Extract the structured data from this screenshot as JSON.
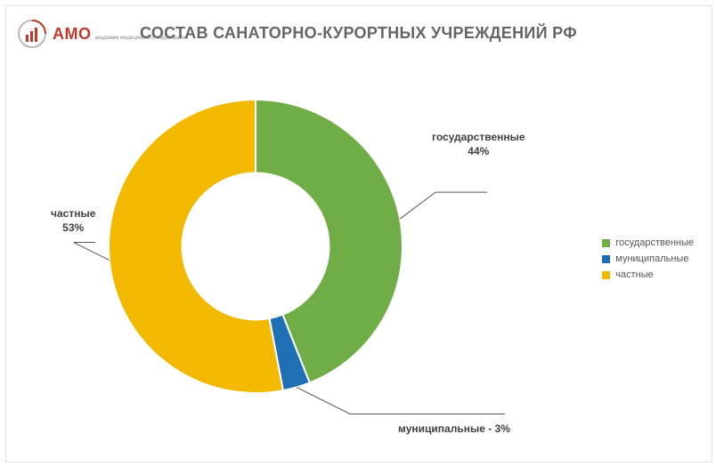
{
  "logo": {
    "main": "АМО",
    "sub": "академия\nмедицинского\nобразования",
    "ring_colors": [
      "#c0392b",
      "#95a5a6"
    ]
  },
  "title": "СОСТАВ САНАТОРНО-КУРОРТНЫХ УЧРЕЖДЕНИЙ РФ",
  "chart": {
    "type": "donut",
    "background_color": "#ffffff",
    "border_color": "#e0e0e0",
    "inner_radius_ratio": 0.5,
    "start_angle_deg": 0,
    "slices": [
      {
        "key": "gov",
        "label": "государственные",
        "value": 44,
        "color": "#71ad46",
        "callout": "государственные\n44%"
      },
      {
        "key": "mun",
        "label": "муниципальные",
        "value": 3,
        "color": "#1f6fb4",
        "callout": "муниципальные - 3%"
      },
      {
        "key": "priv",
        "label": "частные",
        "value": 53,
        "color": "#f2b900",
        "callout": "частные\n53%"
      }
    ],
    "label_fontsize": 12,
    "label_fontweight": "bold",
    "label_color": "#404040",
    "legend": {
      "position": "right",
      "fontsize": 11,
      "items": [
        {
          "swatch": "#71ad46",
          "text": "государственные"
        },
        {
          "swatch": "#1f6fb4",
          "text": "муниципальные"
        },
        {
          "swatch": "#f2b900",
          "text": "частные"
        }
      ]
    }
  }
}
